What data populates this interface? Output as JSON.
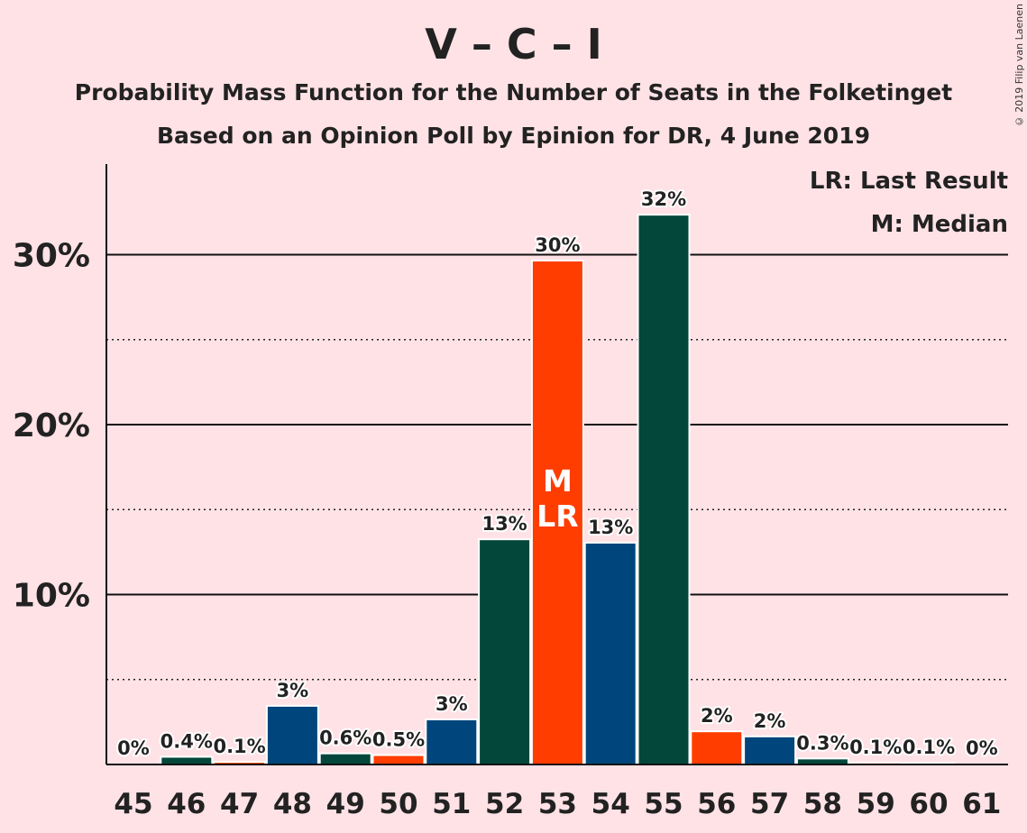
{
  "title": "V – C – I",
  "subtitle": "Probability Mass Function for the Number of Seats in the Folketinget",
  "subtitle2": "Based on an Opinion Poll by Epinion for DR, 4 June 2019",
  "copyright": "© 2019 Filip van Laenen",
  "legend": {
    "lr": "LR: Last Result",
    "m": "M: Median"
  },
  "colors": {
    "background": "#FFE2E6",
    "venstre": "#00467C",
    "conservative": "#03473A",
    "liberal_alliance": "#FF3D00"
  },
  "chart_data": {
    "type": "bar",
    "categories": [
      "45",
      "46",
      "47",
      "48",
      "49",
      "50",
      "51",
      "52",
      "53",
      "54",
      "55",
      "56",
      "57",
      "58",
      "59",
      "60",
      "61"
    ],
    "values": [
      0,
      0.4,
      0.1,
      3.4,
      0.6,
      0.5,
      2.6,
      13.2,
      29.6,
      13.0,
      32.3,
      1.9,
      1.6,
      0.3,
      0.06,
      0.05,
      0
    ],
    "labels": [
      "0%",
      "0.4%",
      "0.1%",
      "3%",
      "0.6%",
      "0.5%",
      "3%",
      "13%",
      "30%",
      "13%",
      "32%",
      "2%",
      "2%",
      "0.3%",
      "0.1%",
      "0.1%",
      "0%"
    ],
    "bar_colors": [
      "#00467C",
      "#03473A",
      "#FF3D00",
      "#00467C",
      "#03473A",
      "#FF3D00",
      "#00467C",
      "#03473A",
      "#FF3D00",
      "#00467C",
      "#03473A",
      "#FF3D00",
      "#00467C",
      "#03473A",
      "#FF3D00",
      "#00467C",
      "#03473A"
    ],
    "yticks": [
      10,
      20,
      30
    ],
    "ytick_labels": [
      "10%",
      "20%",
      "30%"
    ],
    "minor_yticks": [
      5,
      15,
      25
    ],
    "ylim": [
      0,
      35
    ],
    "median_seat": "53",
    "last_result_seat": "53",
    "median_marker": "M",
    "last_result_marker": "LR",
    "legend_position": "top-right"
  }
}
